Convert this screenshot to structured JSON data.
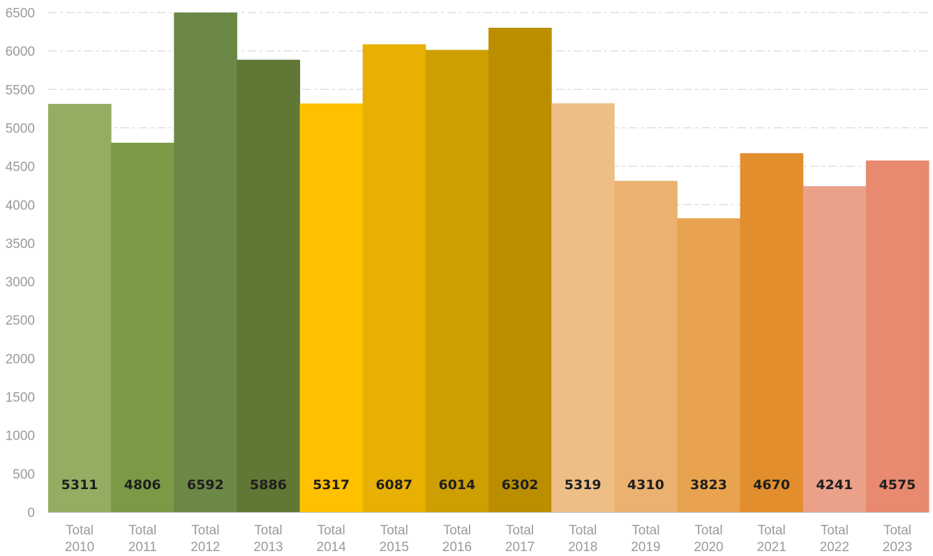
{
  "chart_data": {
    "type": "bar",
    "title": "",
    "xlabel": "",
    "ylabel": "",
    "ylim": [
      0,
      6500
    ],
    "yticks": [
      0,
      500,
      1000,
      1500,
      2000,
      2500,
      3000,
      3500,
      4000,
      4500,
      5000,
      5500,
      6000,
      6500
    ],
    "grid": true,
    "legend": "none",
    "categories": [
      [
        "Total",
        "2010"
      ],
      [
        "Total",
        "2011"
      ],
      [
        "Total",
        "2012"
      ],
      [
        "Total",
        "2013"
      ],
      [
        "Total",
        "2014"
      ],
      [
        "Total",
        "2015"
      ],
      [
        "Total",
        "2016"
      ],
      [
        "Total",
        "2017"
      ],
      [
        "Total",
        "2018"
      ],
      [
        "Total",
        "2019"
      ],
      [
        "Total",
        "2020"
      ],
      [
        "Total",
        "2021"
      ],
      [
        "Total",
        "2022"
      ],
      [
        "Total",
        "2023"
      ]
    ],
    "values": [
      5311,
      4806,
      6592,
      5886,
      5317,
      6087,
      6014,
      6302,
      5319,
      4310,
      3823,
      4670,
      4241,
      4575
    ],
    "data_labels": [
      "5311",
      "4806",
      "6592",
      "5886",
      "5317",
      "6087",
      "6014",
      "6302",
      "5319",
      "4310",
      "3823",
      "4670",
      "4241",
      "4575"
    ],
    "colors": [
      "#93ae62",
      "#7a9a45",
      "#6c8846",
      "#617735",
      "#ffc000",
      "#e8b002",
      "#cd9f00",
      "#bb8e00",
      "#edbf87",
      "#ebb170",
      "#e9a34f",
      "#e28e2c",
      "#eba08a",
      "#e88a70"
    ],
    "colors_style": {
      "grid": "#cfcfcf",
      "tick_text": "#9a9a9a",
      "label_text": "#1f1f1f"
    }
  }
}
